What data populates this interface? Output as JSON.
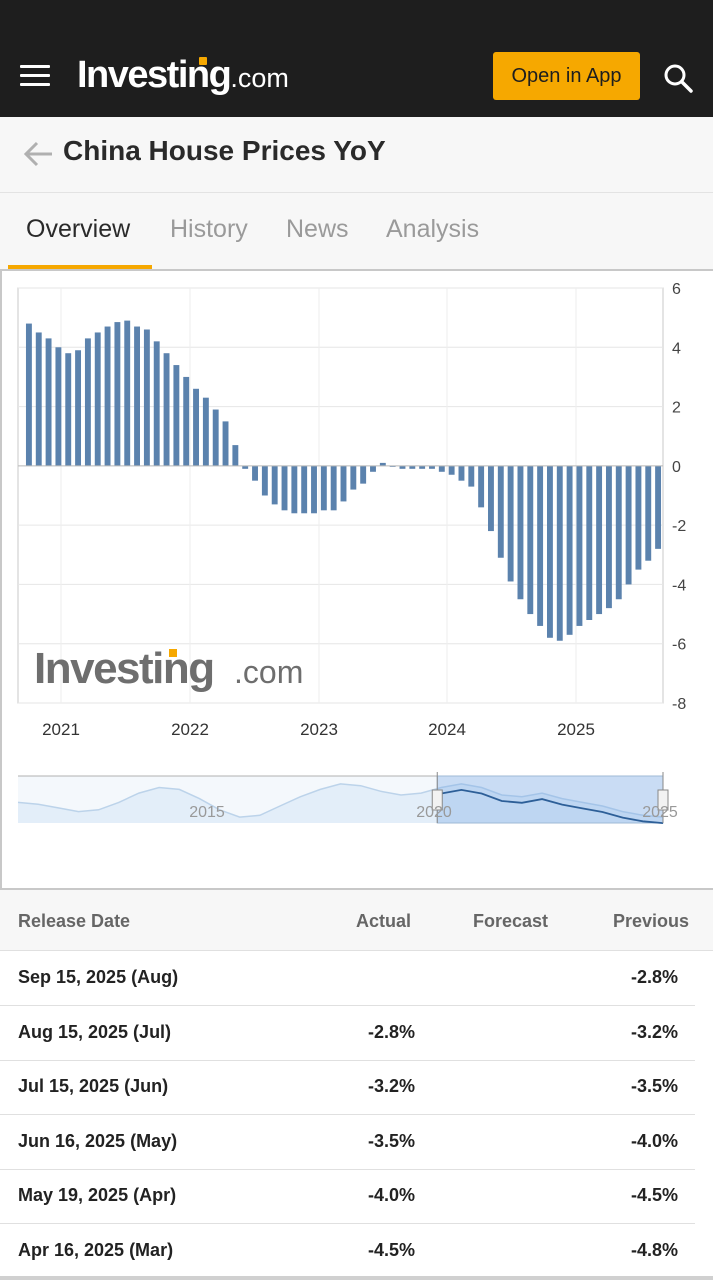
{
  "header": {
    "logo_main": "Investing",
    "logo_suffix": ".com",
    "open_app_label": "Open in App",
    "menu_icon": "hamburger-icon",
    "search_icon": "search-icon",
    "accent_color": "#f6a800",
    "bar_color": "#1e1e1e"
  },
  "page": {
    "title": "China House Prices YoY",
    "back_icon": "back-arrow-icon"
  },
  "tabs": [
    {
      "label": "Overview",
      "active": true
    },
    {
      "label": "History",
      "active": false
    },
    {
      "label": "News",
      "active": false
    },
    {
      "label": "Analysis",
      "active": false
    }
  ],
  "chart_data": {
    "type": "bar",
    "bar_color": "#5b82ad",
    "watermark": {
      "main": "Investing",
      "suffix": ".com"
    },
    "x_ticks": [
      "2021",
      "2022",
      "2023",
      "2024",
      "2025"
    ],
    "y_ticks": [
      "6",
      "4",
      "2",
      "0",
      "-2",
      "-4",
      "-6",
      "-8"
    ],
    "ylim": [
      -8,
      6
    ],
    "grid": true,
    "values": [
      4.8,
      4.5,
      4.3,
      4.0,
      3.8,
      3.9,
      4.3,
      4.5,
      4.7,
      4.85,
      4.9,
      4.7,
      4.6,
      4.2,
      3.8,
      3.4,
      3.0,
      2.6,
      2.3,
      1.9,
      1.5,
      0.7,
      -0.1,
      -0.5,
      -1.0,
      -1.3,
      -1.5,
      -1.6,
      -1.6,
      -1.6,
      -1.5,
      -1.5,
      -1.2,
      -0.8,
      -0.6,
      -0.2,
      0.1,
      0.0,
      -0.1,
      -0.1,
      -0.1,
      -0.1,
      -0.2,
      -0.3,
      -0.5,
      -0.7,
      -1.4,
      -2.2,
      -3.1,
      -3.9,
      -4.5,
      -5.0,
      -5.4,
      -5.8,
      -5.9,
      -5.7,
      -5.4,
      -5.2,
      -5.0,
      -4.8,
      -4.5,
      -4.0,
      -3.5,
      -3.2,
      -2.8
    ],
    "navigator": {
      "labels": [
        "2015",
        "2020",
        "2025"
      ],
      "series": [
        0.45,
        0.4,
        0.3,
        0.2,
        0.25,
        0.45,
        0.7,
        0.85,
        0.8,
        0.55,
        0.25,
        0.05,
        0.1,
        0.35,
        0.6,
        0.8,
        0.95,
        0.9,
        0.75,
        0.65,
        0.7,
        0.85,
        0.95,
        0.85,
        0.65,
        0.6,
        0.7,
        0.55,
        0.45,
        0.35,
        0.2,
        0.1,
        0.05
      ],
      "range_start_fraction": 0.65,
      "range_end_fraction": 1.0
    }
  },
  "table": {
    "headers": {
      "release_date": "Release Date",
      "actual": "Actual",
      "forecast": "Forecast",
      "previous": "Previous"
    },
    "rows": [
      {
        "date": "Sep 15, 2025 (Aug)",
        "actual": "",
        "forecast": "",
        "previous": "-2.8%"
      },
      {
        "date": "Aug 15, 2025 (Jul)",
        "actual": "-2.8%",
        "forecast": "",
        "previous": "-3.2%"
      },
      {
        "date": "Jul 15, 2025 (Jun)",
        "actual": "-3.2%",
        "forecast": "",
        "previous": "-3.5%"
      },
      {
        "date": "Jun 16, 2025 (May)",
        "actual": "-3.5%",
        "forecast": "",
        "previous": "-4.0%"
      },
      {
        "date": "May 19, 2025 (Apr)",
        "actual": "-4.0%",
        "forecast": "",
        "previous": "-4.5%"
      },
      {
        "date": "Apr 16, 2025 (Mar)",
        "actual": "-4.5%",
        "forecast": "",
        "previous": "-4.8%"
      }
    ]
  }
}
